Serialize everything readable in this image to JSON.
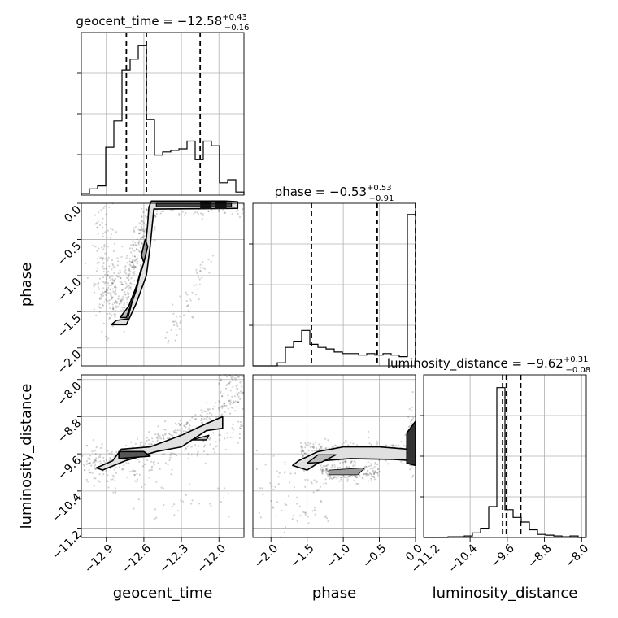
{
  "chart_data": {
    "type": "corner",
    "parameters": [
      {
        "name": "geocent_time",
        "label": "geocent_time",
        "range": [
          -13.1,
          -11.8
        ],
        "ticks": [
          -12.9,
          -12.6,
          -12.3,
          -12.0
        ],
        "tick_labels": [
          "−12.9",
          "−12.6",
          "−12.3",
          "−12.0"
        ],
        "title": {
          "prefix": "geocent_time = ",
          "median": "−12.58",
          "plus": "+0.43",
          "minus": "−0.16"
        },
        "quantiles": [
          -12.74,
          -12.58,
          -12.15
        ],
        "histogram": {
          "bins": [
            -13.1,
            -13.035,
            -12.97,
            -12.905,
            -12.84,
            -12.775,
            -12.71,
            -12.645,
            -12.58,
            -12.515,
            -12.45,
            -12.385,
            -12.32,
            -12.255,
            -12.19,
            -12.125,
            -12.06,
            -11.995,
            -11.93,
            -11.865,
            -11.8
          ],
          "counts": [
            0.01,
            0.04,
            0.06,
            0.31,
            0.48,
            0.81,
            0.88,
            0.97,
            0.49,
            0.26,
            0.28,
            0.29,
            0.3,
            0.35,
            0.23,
            0.35,
            0.32,
            0.08,
            0.1,
            0.02
          ]
        }
      },
      {
        "name": "phase",
        "label": "phase",
        "range": [
          -2.25,
          0.0
        ],
        "ticks": [
          -2.0,
          -1.5,
          -1.0,
          -0.5,
          0.0
        ],
        "tick_labels": [
          "−2.0",
          "−1.5",
          "−1.0",
          "−0.5",
          "0.0"
        ],
        "title": {
          "prefix": "phase = ",
          "median": "−0.53",
          "plus": "+0.53",
          "minus": "−0.91"
        },
        "quantiles": [
          -1.44,
          -0.53,
          0.0
        ],
        "histogram": {
          "bins": [
            -2.25,
            -2.1375,
            -2.025,
            -1.9125,
            -1.8,
            -1.6875,
            -1.575,
            -1.4625,
            -1.35,
            -1.2375,
            -1.125,
            -1.0125,
            -0.9,
            -0.7875,
            -0.675,
            -0.5625,
            -0.45,
            -0.3375,
            -0.225,
            -0.1125,
            0.0
          ],
          "counts": [
            0.0,
            0.0,
            0.0,
            0.02,
            0.12,
            0.16,
            0.23,
            0.14,
            0.12,
            0.11,
            0.09,
            0.08,
            0.08,
            0.07,
            0.08,
            0.07,
            0.08,
            0.07,
            0.06,
            0.98
          ]
        }
      },
      {
        "name": "luminosity_distance",
        "label": "luminosity_distance",
        "range": [
          -11.4,
          -7.9
        ],
        "ticks": [
          -11.2,
          -10.4,
          -9.6,
          -8.8,
          -8.0
        ],
        "tick_labels": [
          "−11.2",
          "−10.4",
          "−9.6",
          "−8.8",
          "−8.0"
        ],
        "title": {
          "prefix": "luminosity_distance = ",
          "median": "−9.62",
          "plus": "+0.31",
          "minus": "−0.08"
        },
        "quantiles": [
          -9.7,
          -9.62,
          -9.31
        ],
        "histogram": {
          "bins": [
            -11.4,
            -11.225,
            -11.05,
            -10.875,
            -10.7,
            -10.525,
            -10.35,
            -10.175,
            -10.0,
            -9.825,
            -9.65,
            -9.475,
            -9.3,
            -9.125,
            -8.95,
            -8.775,
            -8.6,
            -8.425,
            -8.25,
            -8.075,
            -7.9
          ],
          "counts": [
            0.0,
            0.0,
            0.0,
            0.005,
            0.005,
            0.01,
            0.03,
            0.06,
            0.2,
            0.97,
            0.18,
            0.13,
            0.1,
            0.05,
            0.02,
            0.015,
            0.01,
            0.005,
            0.01,
            0.0
          ]
        }
      }
    ],
    "pair_panels": [
      {
        "x": "geocent_time",
        "y": "phase"
      },
      {
        "x": "geocent_time",
        "y": "luminosity_distance"
      },
      {
        "x": "phase",
        "y": "luminosity_distance"
      }
    ],
    "grid": true
  }
}
